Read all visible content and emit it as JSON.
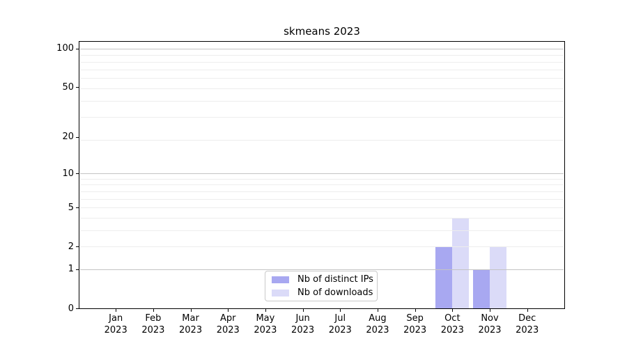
{
  "title": "skmeans 2023",
  "colors": {
    "distinct_ips": "#a8a8f1",
    "downloads": "#dbdbf8",
    "grid_major": "#c4c4c4",
    "grid_minor": "#ededed",
    "axis": "#000000",
    "legend_border": "#c9c9c9"
  },
  "legend": {
    "items": [
      {
        "label": "Nb of distinct IPs",
        "color": "#a8a8f1"
      },
      {
        "label": "Nb of downloads",
        "color": "#dbdbf8"
      }
    ]
  },
  "chart_data": {
    "type": "bar",
    "title": "skmeans 2023",
    "categories": [
      "Jan 2023",
      "Feb 2023",
      "Mar 2023",
      "Apr 2023",
      "May 2023",
      "Jun 2023",
      "Jul 2023",
      "Aug 2023",
      "Sep 2023",
      "Oct 2023",
      "Nov 2023",
      "Dec 2023"
    ],
    "series": [
      {
        "name": "Nb of distinct IPs",
        "color": "#a8a8f1",
        "values": [
          0,
          0,
          0,
          0,
          0,
          0,
          0,
          0,
          0,
          2,
          1,
          0
        ]
      },
      {
        "name": "Nb of downloads",
        "color": "#dbdbf8",
        "values": [
          0,
          0,
          0,
          0,
          0,
          0,
          0,
          0,
          0,
          4,
          2,
          0
        ]
      }
    ],
    "xlabel": "",
    "ylabel": "",
    "yscale": "log1p",
    "yticks": [
      0,
      1,
      2,
      5,
      10,
      20,
      50,
      100
    ],
    "ylim": [
      0,
      113
    ],
    "grid": "horizontal",
    "legend_position": "lower-center-inside"
  }
}
